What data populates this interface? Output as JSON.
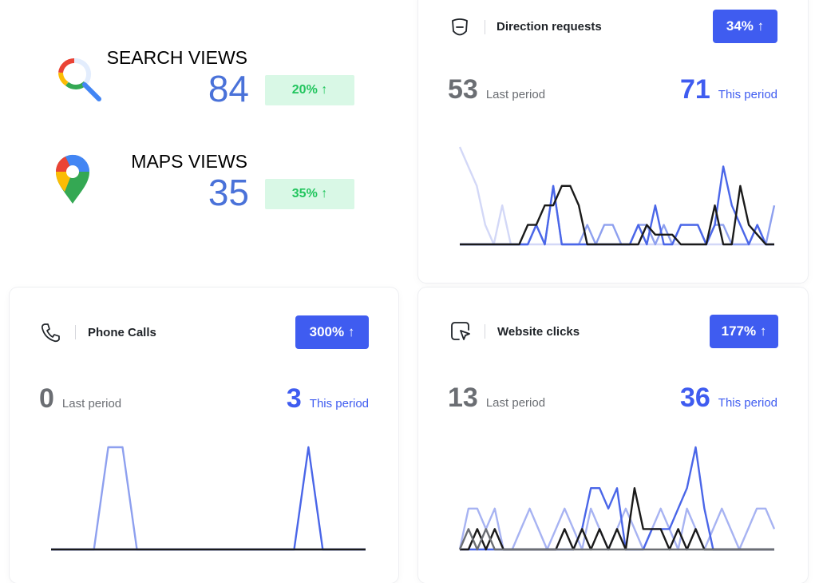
{
  "summary": [
    {
      "title": "SEARCH VIEWS",
      "value": "84",
      "change": "20% ↑",
      "icon": "google-search-icon"
    },
    {
      "title": "MAPS VIEWS",
      "value": "35",
      "change": "35% ↑",
      "icon": "google-maps-pin-icon"
    }
  ],
  "colors": {
    "accent": "#3f5cf0",
    "positive": "#22c55e",
    "positive_bg": "#d9f8e6",
    "muted": "#6b6e73"
  },
  "cards": {
    "direction": {
      "title": "Direction requests",
      "icon": "direction-sign-icon",
      "badge": "34% ↑",
      "last_value": "53",
      "last_label": "Last period",
      "this_value": "71",
      "this_label": "This period"
    },
    "phone": {
      "title": "Phone Calls",
      "icon": "phone-icon",
      "badge": "300% ↑",
      "last_value": "0",
      "last_label": "Last period",
      "this_value": "3",
      "this_label": "This period"
    },
    "website": {
      "title": "Website clicks",
      "icon": "cursor-click-icon",
      "badge": "177% ↑",
      "last_value": "13",
      "last_label": "Last period",
      "this_value": "36",
      "this_label": "This period"
    }
  },
  "chart_data": [
    {
      "type": "line",
      "title": "Direction requests",
      "ylim": [
        0,
        5
      ],
      "grid": false,
      "series": [
        {
          "color": "#d3d8f7",
          "values": [
            5,
            4,
            3,
            1,
            0,
            2,
            0,
            0,
            0,
            0,
            0,
            0,
            0,
            0,
            0,
            0,
            0,
            0,
            0,
            0,
            0,
            0,
            0,
            0,
            0,
            0,
            0,
            0,
            0,
            0,
            0,
            0,
            0,
            0,
            0,
            0,
            0,
            0
          ]
        },
        {
          "color": "#8ea0ef",
          "values": [
            0,
            0,
            0,
            0,
            0,
            0,
            0,
            0,
            0,
            1,
            0,
            3,
            0,
            0,
            0,
            1,
            0,
            1,
            1,
            0,
            0,
            1,
            1,
            0,
            1,
            0,
            1,
            1,
            1,
            0,
            1,
            1,
            0,
            0,
            0,
            1,
            0,
            2
          ]
        },
        {
          "color": "#4a66e8",
          "values": [
            0,
            0,
            0,
            0,
            0,
            0,
            0,
            0,
            0,
            1,
            0,
            3,
            0,
            0,
            0,
            0,
            0,
            0,
            0,
            0,
            0,
            1,
            0,
            2,
            0,
            0,
            1,
            1,
            1,
            0,
            1,
            4,
            2,
            1,
            0,
            1,
            0,
            0
          ]
        },
        {
          "color": "#1a1a1a",
          "values": [
            0,
            0,
            0,
            0,
            0,
            0,
            0,
            0,
            1,
            1,
            2,
            2,
            3,
            3,
            2,
            0,
            0,
            0,
            0,
            0,
            0,
            0,
            1,
            0.5,
            0.5,
            0.5,
            0,
            0,
            0,
            0,
            2,
            0,
            0,
            3,
            1,
            0.5,
            0,
            0
          ]
        }
      ]
    },
    {
      "type": "line",
      "title": "Phone Calls",
      "ylim": [
        0,
        1
      ],
      "grid": false,
      "series": [
        {
          "color": "#8ea0ef",
          "values": [
            0,
            0,
            0,
            0,
            1,
            1,
            0,
            0,
            0,
            0,
            0,
            0,
            0,
            0,
            0,
            0,
            0,
            0,
            0,
            0,
            0,
            0,
            0
          ]
        },
        {
          "color": "#4a66e8",
          "values": [
            0,
            0,
            0,
            0,
            0,
            0,
            0,
            0,
            0,
            0,
            0,
            0,
            0,
            0,
            0,
            0,
            0,
            0,
            1,
            0,
            0,
            0,
            0
          ]
        },
        {
          "color": "#1a1a1a",
          "values": [
            0,
            0,
            0,
            0,
            0,
            0,
            0,
            0,
            0,
            0,
            0,
            0,
            0,
            0,
            0,
            0,
            0,
            0,
            0,
            0,
            0,
            0,
            0
          ]
        }
      ]
    },
    {
      "type": "line",
      "title": "Website clicks",
      "ylim": [
        0,
        5
      ],
      "grid": false,
      "series": [
        {
          "color": "#a7b3f2",
          "values": [
            0,
            2,
            2,
            1,
            2,
            0,
            0,
            1,
            2,
            1,
            0,
            1,
            2,
            1,
            0,
            2,
            1,
            0,
            1,
            2,
            1,
            0,
            1,
            2,
            1,
            0,
            2,
            1,
            0,
            1,
            2,
            1,
            0,
            1,
            2,
            2,
            1
          ]
        },
        {
          "color": "#4a66e8",
          "values": [
            0,
            0,
            0,
            0,
            0,
            0,
            0,
            0,
            0,
            0,
            0,
            0,
            0,
            0,
            1,
            3,
            3,
            2,
            3,
            0,
            0,
            0,
            1,
            1,
            1,
            2,
            3,
            5,
            2,
            0,
            0,
            0,
            0,
            0,
            0,
            0,
            0
          ]
        },
        {
          "color": "#1a1a1a",
          "values": [
            0,
            0,
            1,
            0,
            1,
            0,
            0,
            0,
            0,
            0,
            0,
            0,
            1,
            0,
            1,
            0,
            1,
            0,
            1,
            0,
            3,
            1,
            1,
            1,
            0,
            1,
            0,
            1,
            0,
            0,
            0,
            0,
            0,
            0,
            0,
            0,
            0
          ]
        },
        {
          "color": "#6b6e73",
          "values": [
            0,
            1,
            0,
            1,
            0,
            0,
            0,
            0,
            0,
            0,
            0,
            0,
            0,
            0,
            0,
            0,
            0,
            0,
            0,
            0,
            0,
            0,
            0,
            0,
            0,
            0,
            0,
            0,
            0,
            0,
            0,
            0,
            0,
            0,
            0,
            0,
            0
          ]
        }
      ]
    }
  ]
}
